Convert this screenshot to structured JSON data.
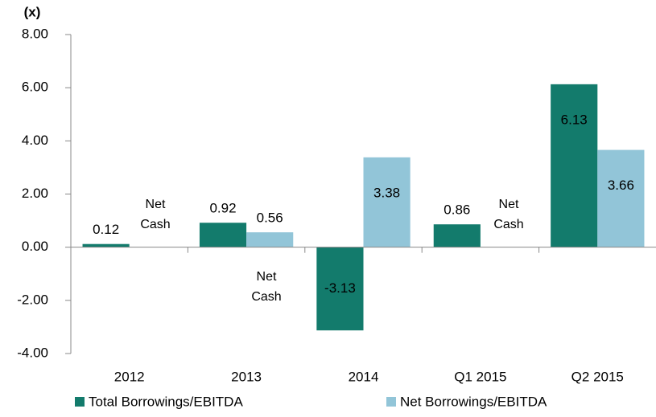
{
  "chart_data": {
    "type": "bar",
    "y_axis_label": "(x)",
    "categories": [
      "2012",
      "2013",
      "2014",
      "Q1 2015",
      "Q2 2015"
    ],
    "series": [
      {
        "name": "Total Borrowings/EBITDA",
        "color": "#137b6c",
        "values": [
          0.12,
          0.92,
          -3.13,
          0.86,
          6.13
        ]
      },
      {
        "name": "Net Borrowings/EBITDA",
        "color": "#92c5d8",
        "values": [
          null,
          0.56,
          3.38,
          null,
          3.66
        ]
      }
    ],
    "annotations": [
      "Net Cash",
      "Net Cash",
      "Net Cash"
    ],
    "ylim": [
      -4,
      8
    ],
    "yticks": [
      {
        "value": -4,
        "label": "-4.00"
      },
      {
        "value": -2,
        "label": "-2.00"
      },
      {
        "value": 0,
        "label": "0.00"
      },
      {
        "value": 2,
        "label": "2.00"
      },
      {
        "value": 4,
        "label": "4.00"
      },
      {
        "value": 6,
        "label": "6.00"
      },
      {
        "value": 8,
        "label": "8.00"
      }
    ]
  }
}
